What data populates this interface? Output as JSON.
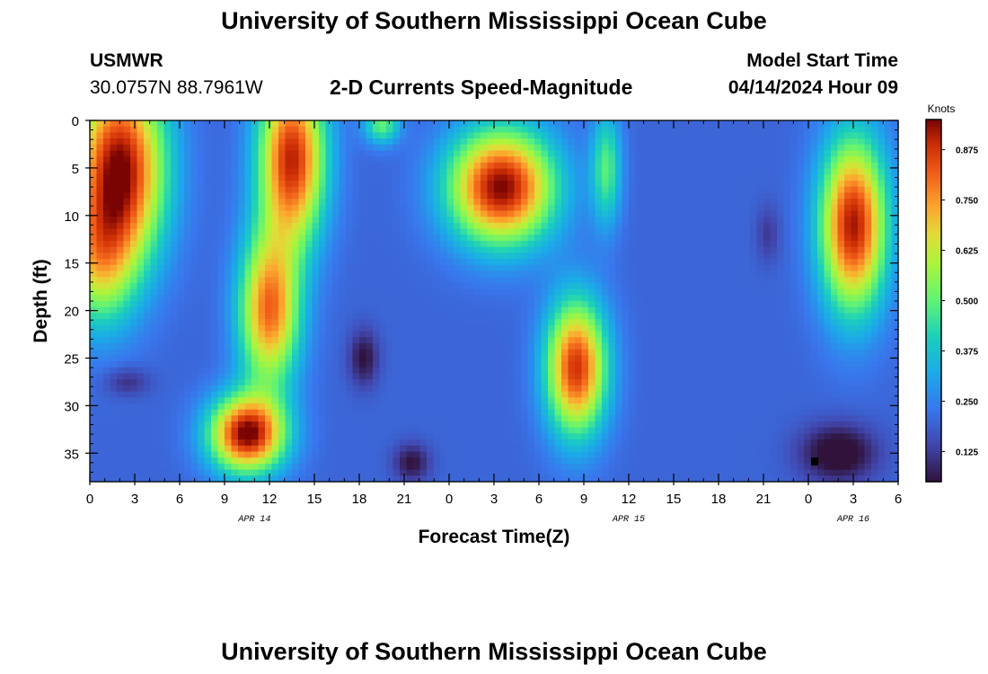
{
  "header": {
    "title": "University of Southern Mississippi Ocean Cube",
    "station": "USMWR",
    "coordinates": "30.0757N  88.7961W",
    "plot_title": "2-D Currents Speed-Magnitude",
    "model_start_label": "Model Start Time",
    "model_start_value": "04/14/2024 Hour 09"
  },
  "footer": {
    "title": "University of Southern Mississippi Ocean Cube"
  },
  "chart_data": {
    "type": "heatmap",
    "title": "2-D Currents Speed-Magnitude",
    "xlabel": "Forecast Time(Z)",
    "ylabel": "Depth (ft)",
    "x_range_hours": [
      0,
      54
    ],
    "y_range_ft": [
      0,
      38
    ],
    "x_tick_labels": [
      "0",
      "3",
      "6",
      "9",
      "12",
      "15",
      "18",
      "21",
      "0",
      "3",
      "6",
      "9",
      "12",
      "15",
      "18",
      "21",
      "0",
      "3",
      "6"
    ],
    "y_tick_labels": [
      "0",
      "5",
      "10",
      "15",
      "20",
      "25",
      "30",
      "35"
    ],
    "y_tick_values": [
      0,
      5,
      10,
      15,
      20,
      25,
      30,
      35
    ],
    "date_labels": [
      {
        "label": "APR 14",
        "at_hour": 11
      },
      {
        "label": "APR 15",
        "at_hour": 36
      },
      {
        "label": "APR 16",
        "at_hour": 51
      }
    ],
    "colorbar": {
      "unit": "Knots",
      "min": 0.05,
      "max": 0.95,
      "tick_values": [
        0.125,
        0.25,
        0.375,
        0.5,
        0.625,
        0.75,
        0.875
      ],
      "tick_labels": [
        "0.125",
        "0.250",
        "0.375",
        "0.500",
        "0.625",
        "0.750",
        "0.875"
      ]
    },
    "features": [
      {
        "type": "gauss",
        "hour": 2,
        "depth": 5,
        "sx": 3.0,
        "sy": 10,
        "amp": 0.75
      },
      {
        "type": "gauss",
        "hour": 0.5,
        "depth": 15,
        "sx": 2.5,
        "sy": 7,
        "amp": 0.35
      },
      {
        "type": "gauss",
        "hour": 13.5,
        "depth": 4,
        "sx": 2.2,
        "sy": 9,
        "amp": 0.7
      },
      {
        "type": "gauss",
        "hour": 12,
        "depth": 20,
        "sx": 2.0,
        "sy": 8,
        "amp": 0.6
      },
      {
        "type": "gauss",
        "hour": 10.5,
        "depth": 33,
        "sx": 2.5,
        "sy": 4,
        "amp": 0.75
      },
      {
        "type": "gauss",
        "hour": 19.5,
        "depth": 0.5,
        "sx": 1.2,
        "sy": 2,
        "amp": 0.3
      },
      {
        "type": "gauss",
        "hour": 27.5,
        "depth": 7,
        "sx": 3.5,
        "sy": 6,
        "amp": 0.75
      },
      {
        "type": "gauss",
        "hour": 32.5,
        "depth": 26,
        "sx": 2.0,
        "sy": 7,
        "amp": 0.68
      },
      {
        "type": "gauss",
        "hour": 34.5,
        "depth": 5,
        "sx": 1.0,
        "sy": 6,
        "amp": 0.28
      },
      {
        "type": "gauss",
        "hour": 51,
        "depth": 11,
        "sx": 2.2,
        "sy": 9,
        "amp": 0.72
      },
      {
        "type": "gauss",
        "hour": 50,
        "depth": 35,
        "sx": 2.5,
        "sy": 3,
        "amp": -0.2
      },
      {
        "type": "gauss",
        "hour": 18.3,
        "depth": 25,
        "sx": 1.0,
        "sy": 3,
        "amp": -0.15
      },
      {
        "type": "gauss",
        "hour": 2.5,
        "depth": 27.5,
        "sx": 1.5,
        "sy": 1.5,
        "amp": -0.1
      },
      {
        "type": "gauss",
        "hour": 21.5,
        "depth": 36,
        "sx": 1.2,
        "sy": 2,
        "amp": -0.15
      },
      {
        "type": "gauss",
        "hour": 45.3,
        "depth": 12,
        "sx": 0.8,
        "sy": 3,
        "amp": -0.08
      }
    ],
    "base_value": 0.2,
    "min_value": 0.03,
    "max_value": 0.95
  }
}
